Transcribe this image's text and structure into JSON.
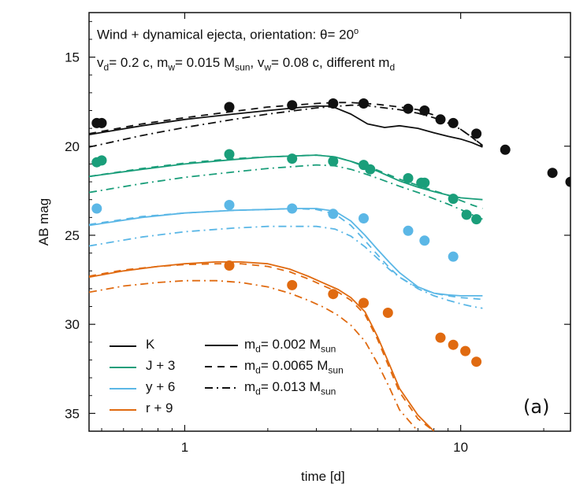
{
  "chart_data": {
    "type": "line",
    "annotation_line1": {
      "text": "Wind + dynamical ejecta, orientation: θ= 20",
      "sup": "o"
    },
    "annotation_line2": {
      "parts": [
        "v",
        "d",
        "= 0.2 c, m",
        "w",
        "= 0.015 M",
        "sun",
        ", v",
        "w",
        "= 0.08 c, different m",
        "d"
      ]
    },
    "xlabel": "time [d]",
    "ylabel": "AB mag",
    "panel_label": "(a)",
    "x_scale": "log",
    "xlim": [
      0.45,
      25
    ],
    "ylim": [
      36,
      12.5
    ],
    "y_inverted": true,
    "x_ticks": [
      1,
      10
    ],
    "x_tick_labels": [
      "1",
      "10"
    ],
    "y_ticks": [
      15,
      20,
      25,
      30,
      35
    ],
    "y_tick_labels": [
      "15",
      "20",
      "25",
      "30",
      "35"
    ],
    "grid": false,
    "legend_bands": {
      "position": "bottom-left",
      "entries": [
        {
          "label": "K",
          "color": "#111111"
        },
        {
          "label": "J + 3",
          "color": "#1a9e7a"
        },
        {
          "label": "y + 6",
          "color": "#5bb7e6"
        },
        {
          "label": "r + 9",
          "color": "#e06a10"
        }
      ]
    },
    "legend_styles": {
      "entries": [
        {
          "label_prefix": "m",
          "label_sub": "d",
          "label_mid": "= 0.002 M",
          "label_sub2": "sun",
          "dash": "solid"
        },
        {
          "label_prefix": "m",
          "label_sub": "d",
          "label_mid": "= 0.0065 M",
          "label_sub2": "sun",
          "dash": "dashed"
        },
        {
          "label_prefix": "m",
          "label_sub": "d",
          "label_mid": "= 0.013 M",
          "label_sub2": "sun",
          "dash": "dashdot"
        }
      ]
    },
    "bands": [
      {
        "name": "K",
        "color": "#111111",
        "observed": {
          "x": [
            0.48,
            0.5,
            1.45,
            2.45,
            3.45,
            4.45,
            6.45,
            7.4,
            8.45,
            9.4,
            11.4,
            14.5,
            21.5,
            25.0
          ],
          "y": [
            18.7,
            18.7,
            17.8,
            17.7,
            17.6,
            17.6,
            17.9,
            18.0,
            18.5,
            18.7,
            19.3,
            20.2,
            21.5,
            22.0
          ]
        },
        "models": [
          {
            "dash": "solid",
            "x": [
              0.45,
              0.7,
              1.0,
              1.5,
              2.0,
              2.5,
              3.0,
              3.4,
              4.0,
              4.6,
              5.3,
              6.0,
              7.0,
              8.0,
              9.0,
              10.0,
              11.0,
              12.0
            ],
            "y": [
              19.35,
              18.85,
              18.5,
              18.2,
              18.0,
              17.85,
              17.75,
              17.75,
              18.2,
              18.75,
              18.95,
              18.85,
              19.0,
              19.25,
              19.45,
              19.6,
              19.8,
              20.05
            ]
          },
          {
            "dash": "dashed",
            "x": [
              0.45,
              0.7,
              1.0,
              1.5,
              2.0,
              3.0,
              3.5,
              4.0,
              4.5,
              5.0,
              6.0,
              7.0,
              8.0,
              9.0,
              10.0,
              11.0,
              12.0
            ],
            "y": [
              19.3,
              18.75,
              18.4,
              18.05,
              17.8,
              17.6,
              17.55,
              17.55,
              17.6,
              17.65,
              17.8,
              17.95,
              18.25,
              18.65,
              19.05,
              19.5,
              20.0
            ]
          },
          {
            "dash": "dashdot",
            "x": [
              0.45,
              0.7,
              1.0,
              1.5,
              2.0,
              3.0,
              4.0,
              4.5,
              5.0,
              6.0,
              7.0,
              8.0,
              9.0,
              10.0,
              11.0,
              12.0
            ],
            "y": [
              20.05,
              19.4,
              18.95,
              18.5,
              18.2,
              17.85,
              17.7,
              17.7,
              17.8,
              17.95,
              18.15,
              18.4,
              18.7,
              19.05,
              19.5,
              19.95
            ]
          }
        ]
      },
      {
        "name": "J + 3",
        "color": "#1a9e7a",
        "observed": {
          "x": [
            0.48,
            0.5,
            1.45,
            2.45,
            3.45,
            4.45,
            4.7,
            6.45,
            7.2,
            7.4,
            9.4,
            10.5,
            11.4
          ],
          "y": [
            20.9,
            20.8,
            20.45,
            20.7,
            20.85,
            21.05,
            21.3,
            21.8,
            22.05,
            22.05,
            22.95,
            23.85,
            24.1
          ]
        },
        "models": [
          {
            "dash": "solid",
            "x": [
              0.45,
              0.7,
              1.0,
              1.5,
              2.0,
              2.5,
              3.0,
              3.5,
              4.0,
              4.5,
              5.0,
              6.0,
              7.0,
              8.0,
              9.0,
              10.0,
              11.0,
              12.0
            ],
            "y": [
              21.7,
              21.3,
              21.0,
              20.75,
              20.6,
              20.55,
              20.5,
              20.6,
              20.85,
              21.15,
              21.4,
              21.95,
              22.3,
              22.55,
              22.75,
              22.9,
              22.95,
              23.0
            ]
          },
          {
            "dash": "dashed",
            "x": [
              0.45,
              0.7,
              1.0,
              1.5,
              2.0,
              3.0,
              3.5,
              4.0,
              4.5,
              5.0,
              6.0,
              7.0,
              8.0,
              9.0,
              10.0,
              11.0,
              12.0
            ],
            "y": [
              21.7,
              21.25,
              20.95,
              20.7,
              20.6,
              20.5,
              20.6,
              20.85,
              21.1,
              21.35,
              21.85,
              22.2,
              22.5,
              22.75,
              23.05,
              23.3,
              23.5
            ]
          },
          {
            "dash": "dashdot",
            "x": [
              0.45,
              0.7,
              1.0,
              1.5,
              2.0,
              3.0,
              3.5,
              4.0,
              4.5,
              5.0,
              6.0,
              7.0,
              8.0,
              9.0,
              10.0,
              11.0,
              12.0
            ],
            "y": [
              22.6,
              22.1,
              21.75,
              21.45,
              21.25,
              21.05,
              21.1,
              21.3,
              21.55,
              21.8,
              22.25,
              22.6,
              22.95,
              23.25,
              23.55,
              23.85,
              24.1
            ]
          }
        ]
      },
      {
        "name": "y + 6",
        "color": "#5bb7e6",
        "observed": {
          "x": [
            0.48,
            1.45,
            2.45,
            3.45,
            4.45,
            6.45,
            7.4,
            9.4
          ],
          "y": [
            23.5,
            23.3,
            23.5,
            23.8,
            24.05,
            24.75,
            25.3,
            26.2
          ]
        },
        "models": [
          {
            "dash": "solid",
            "x": [
              0.45,
              0.7,
              1.0,
              1.5,
              2.0,
              2.5,
              3.0,
              3.5,
              4.0,
              4.5,
              5.0,
              5.5,
              6.0,
              7.0,
              8.0,
              9.0,
              10.0,
              11.0,
              12.0
            ],
            "y": [
              24.45,
              24.0,
              23.75,
              23.6,
              23.55,
              23.5,
              23.5,
              23.65,
              24.2,
              25.0,
              25.8,
              26.5,
              27.1,
              27.9,
              28.25,
              28.35,
              28.4,
              28.4,
              28.4
            ]
          },
          {
            "dash": "dashed",
            "x": [
              0.45,
              0.7,
              1.0,
              1.5,
              2.0,
              2.5,
              3.0,
              3.5,
              4.0,
              4.5,
              5.0,
              5.5,
              6.0,
              7.0,
              8.0,
              9.0,
              10.0,
              11.0,
              12.0
            ],
            "y": [
              24.4,
              23.95,
              23.75,
              23.6,
              23.55,
              23.5,
              23.55,
              23.8,
              24.45,
              25.3,
              26.1,
              26.8,
              27.35,
              27.95,
              28.25,
              28.4,
              28.5,
              28.55,
              28.6
            ]
          },
          {
            "dash": "dashdot",
            "x": [
              0.45,
              0.7,
              1.0,
              1.5,
              2.0,
              3.0,
              3.5,
              4.0,
              4.5,
              5.0,
              5.5,
              6.0,
              7.0,
              8.0,
              9.0,
              10.0,
              11.0,
              12.0
            ],
            "y": [
              25.6,
              25.1,
              24.8,
              24.6,
              24.5,
              24.5,
              24.65,
              25.05,
              25.65,
              26.3,
              26.9,
              27.35,
              28.0,
              28.4,
              28.65,
              28.85,
              29.0,
              29.1
            ]
          }
        ]
      },
      {
        "name": "r + 9",
        "color": "#e06a10",
        "observed": {
          "x": [
            1.45,
            2.45,
            3.45,
            4.45,
            5.45,
            8.45,
            9.4,
            10.4,
            11.4
          ],
          "y": [
            26.7,
            27.8,
            28.3,
            28.8,
            29.35,
            30.75,
            31.15,
            31.5,
            32.1
          ]
        },
        "models": [
          {
            "dash": "solid",
            "x": [
              0.45,
              0.6,
              0.8,
              1.0,
              1.3,
              1.6,
              2.0,
              2.4,
              2.8,
              3.2,
              3.6,
              4.0,
              4.5,
              5.0,
              5.5,
              6.0,
              7.0,
              8.0
            ],
            "y": [
              27.35,
              27.0,
              26.75,
              26.6,
              26.5,
              26.5,
              26.6,
              26.9,
              27.3,
              27.7,
              28.05,
              28.5,
              29.3,
              30.7,
              32.2,
              33.6,
              35.1,
              36.0
            ]
          },
          {
            "dash": "dashed",
            "x": [
              0.45,
              0.6,
              0.8,
              1.0,
              1.3,
              1.6,
              2.0,
              2.4,
              2.8,
              3.2,
              3.6,
              4.0,
              4.5,
              5.0,
              5.5,
              6.0,
              7.0,
              8.0
            ],
            "y": [
              27.3,
              26.95,
              26.75,
              26.65,
              26.6,
              26.6,
              26.75,
              27.05,
              27.45,
              27.85,
              28.2,
              28.65,
              29.45,
              30.85,
              32.4,
              33.8,
              35.3,
              36.0
            ]
          },
          {
            "dash": "dashdot",
            "x": [
              0.45,
              0.6,
              0.8,
              1.0,
              1.3,
              1.6,
              2.0,
              2.4,
              2.8,
              3.2,
              3.6,
              4.0,
              4.5,
              5.0,
              5.5,
              6.0,
              7.0
            ],
            "y": [
              28.2,
              27.85,
              27.65,
              27.55,
              27.55,
              27.65,
              27.9,
              28.25,
              28.65,
              29.05,
              29.5,
              30.05,
              30.95,
              32.2,
              33.5,
              34.8,
              36.0
            ]
          }
        ]
      }
    ]
  }
}
